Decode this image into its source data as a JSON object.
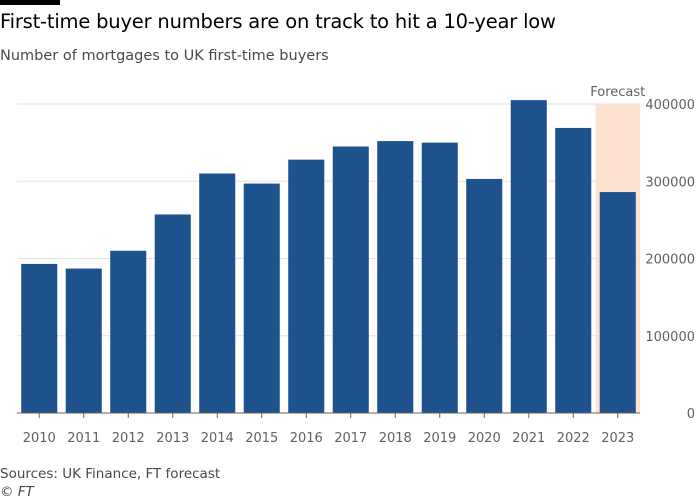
{
  "header": {
    "title": "First-time buyer numbers are on track to hit a 10-year low",
    "subtitle": "Number of mortgages to UK first-time buyers"
  },
  "footer": {
    "source": "Sources: UK Finance, FT forecast",
    "credit": "© FT"
  },
  "colors": {
    "bar": "#1e528c",
    "forecast_shade": "#fde3cf",
    "grid": "#e6e2df",
    "text": "#66605c"
  },
  "chart_data": {
    "type": "bar",
    "title": "First-time buyer numbers are on track to hit a 10-year low",
    "subtitle": "Number of mortgages to UK first-time buyers",
    "xlabel": "",
    "ylabel": "",
    "categories": [
      "2010",
      "2011",
      "2012",
      "2013",
      "2014",
      "2015",
      "2016",
      "2017",
      "2018",
      "2019",
      "2020",
      "2021",
      "2022",
      "2023"
    ],
    "values": [
      193000,
      187000,
      210000,
      257000,
      310000,
      297000,
      328000,
      345000,
      352000,
      350000,
      303000,
      405000,
      369000,
      286000
    ],
    "ylim": [
      0,
      400000
    ],
    "yticks": [
      0,
      100000,
      200000,
      300000,
      400000
    ],
    "ytick_labels": [
      "0",
      "100000",
      "200000",
      "300000",
      "400000"
    ],
    "y_axis_side": "right",
    "grid": true,
    "legend": "none",
    "forecast": {
      "label": "Forecast",
      "category": "2023"
    }
  }
}
